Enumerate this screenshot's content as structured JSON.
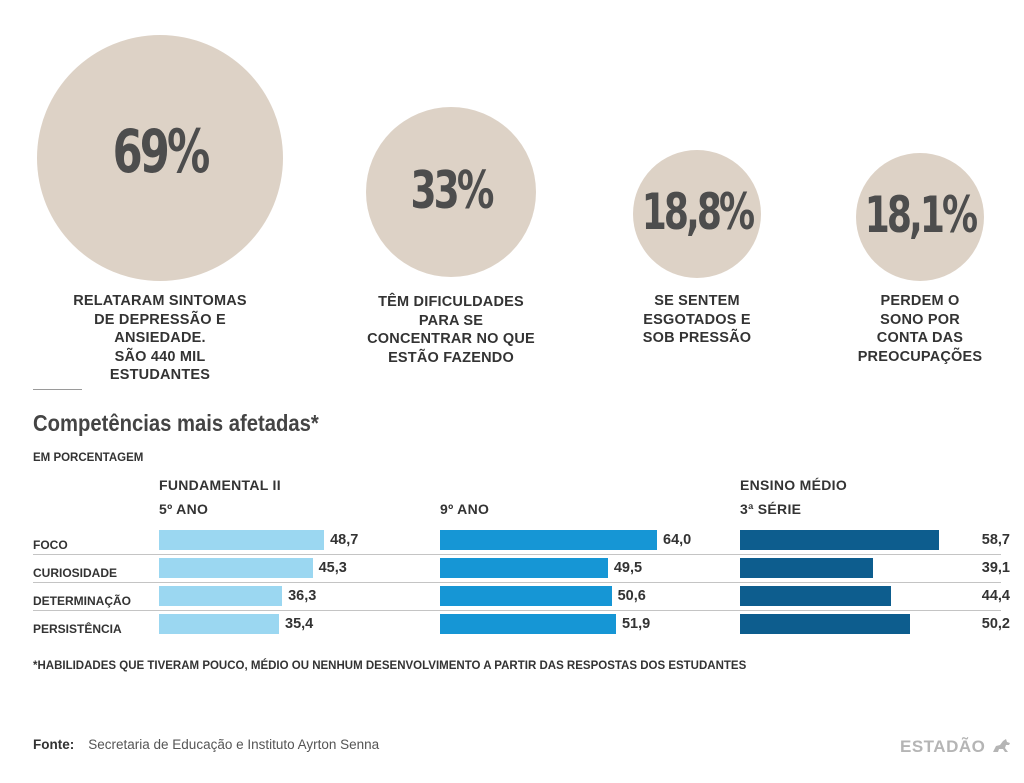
{
  "stats": [
    {
      "value": "69%",
      "caption": [
        "RELATARAM SINTOMAS",
        "DE DEPRESSÃO E",
        "ANSIEDADE.",
        "SÃO 440 MIL",
        "ESTUDANTES"
      ]
    },
    {
      "value": "33%",
      "caption": [
        "TÊM DIFICULDADES",
        "PARA SE",
        "CONCENTRAR NO QUE",
        "ESTÃO FAZENDO"
      ]
    },
    {
      "value": "18,8%",
      "caption": [
        "SE SENTEM",
        "ESGOTADOS E",
        "SOB PRESSÃO"
      ]
    },
    {
      "value": "18,1%",
      "caption": [
        "PERDEM O",
        "SONO POR",
        "CONTA DAS",
        "PREOCUPAÇÕES"
      ]
    }
  ],
  "section": {
    "title": "Competências mais afetadas*",
    "subtitle": "EM PORCENTAGEM"
  },
  "chart_data": {
    "type": "bar",
    "orientation": "horizontal",
    "title": "Competências mais afetadas*",
    "subtitle": "EM PORCENTAGEM",
    "categories": [
      "FOCO",
      "CURIOSIDADE",
      "DETERMINAÇÃO",
      "PERSISTÊNCIA"
    ],
    "groups": [
      {
        "line1": "FUNDAMENTAL II",
        "line2": "5º ANO"
      },
      {
        "line1": "",
        "line2": "9º ANO"
      },
      {
        "line1": "ENSINO MÉDIO",
        "line2": "3ª SÉRIE"
      }
    ],
    "series": [
      {
        "color": "#9bd7f1",
        "values": [
          48.7,
          45.3,
          36.3,
          35.4
        ],
        "labels": [
          "48,7",
          "45,3",
          "36,3",
          "35,4"
        ]
      },
      {
        "color": "#1696d5",
        "values": [
          64.0,
          49.5,
          50.6,
          51.9
        ],
        "labels": [
          "64,0",
          "49,5",
          "50,6",
          "51,9"
        ]
      },
      {
        "color": "#0d5d8e",
        "values": [
          58.7,
          39.1,
          44.4,
          50.2
        ],
        "labels": [
          "58,7",
          "39,1",
          "44,4",
          "50,2"
        ]
      }
    ],
    "xlim": [
      0,
      64
    ]
  },
  "footnote": "*HABILIDADES QUE TIVERAM POUCO, MÉDIO OU NENHUM DESENVOLVIMENTO A PARTIR DAS RESPOSTAS DOS ESTUDANTES",
  "source": {
    "label": "Fonte:",
    "text": "Secretaria de Educação e Instituto Ayrton Senna"
  },
  "logo": "ESTADÃO"
}
